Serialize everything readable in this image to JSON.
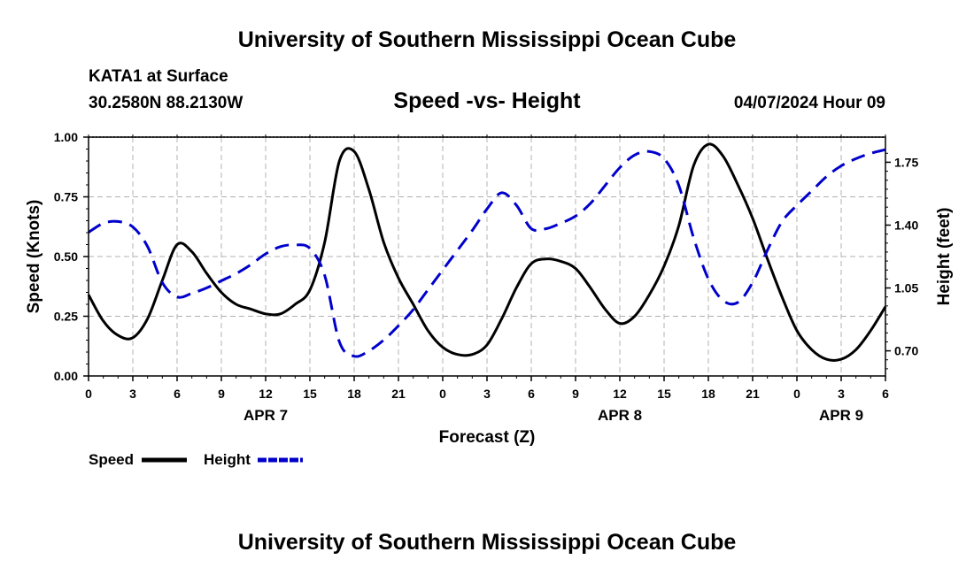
{
  "header": {
    "title": "University of Southern Mississippi Ocean Cube",
    "station": "KATA1 at Surface",
    "coords": "30.2580N  88.2130W",
    "subtitle": "Speed -vs- Height",
    "datetime": "04/07/2024 Hour 09",
    "footer_title": "University of Southern Mississippi Ocean Cube"
  },
  "chart_data": {
    "type": "line",
    "title": "Speed -vs- Height",
    "xlabel": "Forecast (Z)",
    "ylabel": "Speed (Knots)",
    "y2label": "Height (feet)",
    "x_tick_labels": [
      "0",
      "3",
      "6",
      "9",
      "12",
      "15",
      "18",
      "21",
      "0",
      "3",
      "6",
      "9",
      "12",
      "15",
      "18",
      "21",
      "0",
      "3",
      "6"
    ],
    "date_labels": [
      {
        "label": "APR 7",
        "hour": 12
      },
      {
        "label": "APR 8",
        "hour": 36
      },
      {
        "label": "APR 9",
        "hour": 51
      }
    ],
    "xlim": [
      0,
      54
    ],
    "ylim": [
      0,
      1
    ],
    "y_ticks": [
      "0.00",
      "0.25",
      "0.50",
      "0.75",
      "1.00"
    ],
    "y2lim": [
      0.56,
      1.89
    ],
    "y2_ticks": [
      "0.70",
      "1.05",
      "1.40",
      "1.75"
    ],
    "grid": true,
    "legend_position": "bottom-left",
    "series": [
      {
        "name": "Speed",
        "axis": "left",
        "color": "#000000",
        "style": "solid",
        "x": [
          0,
          1,
          2,
          3,
          4,
          5,
          6,
          7,
          8,
          9,
          10,
          11,
          12,
          13,
          14,
          15,
          16,
          17,
          18,
          19,
          20,
          21,
          22,
          23,
          24,
          25,
          26,
          27,
          28,
          29,
          30,
          31,
          32,
          33,
          34,
          35,
          36,
          37,
          38,
          39,
          40,
          41,
          42,
          43,
          44,
          45,
          46,
          47,
          48,
          49,
          50,
          51,
          52,
          53,
          54
        ],
        "values": [
          0.34,
          0.23,
          0.17,
          0.16,
          0.24,
          0.4,
          0.55,
          0.52,
          0.43,
          0.35,
          0.3,
          0.28,
          0.26,
          0.26,
          0.3,
          0.36,
          0.56,
          0.9,
          0.94,
          0.78,
          0.56,
          0.41,
          0.3,
          0.19,
          0.12,
          0.09,
          0.09,
          0.13,
          0.24,
          0.37,
          0.47,
          0.49,
          0.48,
          0.45,
          0.37,
          0.28,
          0.22,
          0.25,
          0.34,
          0.46,
          0.63,
          0.88,
          0.97,
          0.92,
          0.8,
          0.66,
          0.49,
          0.33,
          0.19,
          0.11,
          0.07,
          0.07,
          0.11,
          0.19,
          0.29
        ]
      },
      {
        "name": "Height",
        "axis": "right",
        "color": "#0000cc",
        "style": "dashed",
        "x": [
          0,
          1,
          2,
          3,
          4,
          5,
          6,
          7,
          8,
          9,
          10,
          11,
          12,
          13,
          14,
          15,
          16,
          17,
          18,
          19,
          20,
          21,
          22,
          23,
          24,
          25,
          26,
          27,
          28,
          29,
          30,
          31,
          32,
          33,
          34,
          35,
          36,
          37,
          38,
          39,
          40,
          41,
          42,
          43,
          44,
          45,
          46,
          47,
          48,
          49,
          50,
          51,
          52,
          53,
          54
        ],
        "values": [
          1.36,
          1.41,
          1.42,
          1.39,
          1.28,
          1.08,
          1.0,
          1.02,
          1.05,
          1.09,
          1.13,
          1.18,
          1.24,
          1.28,
          1.29,
          1.27,
          1.12,
          0.75,
          0.67,
          0.7,
          0.76,
          0.84,
          0.93,
          1.04,
          1.15,
          1.26,
          1.37,
          1.49,
          1.58,
          1.51,
          1.38,
          1.38,
          1.41,
          1.45,
          1.52,
          1.62,
          1.72,
          1.79,
          1.81,
          1.77,
          1.62,
          1.33,
          1.1,
          0.98,
          0.97,
          1.08,
          1.26,
          1.42,
          1.51,
          1.59,
          1.67,
          1.73,
          1.77,
          1.8,
          1.82
        ]
      }
    ]
  }
}
